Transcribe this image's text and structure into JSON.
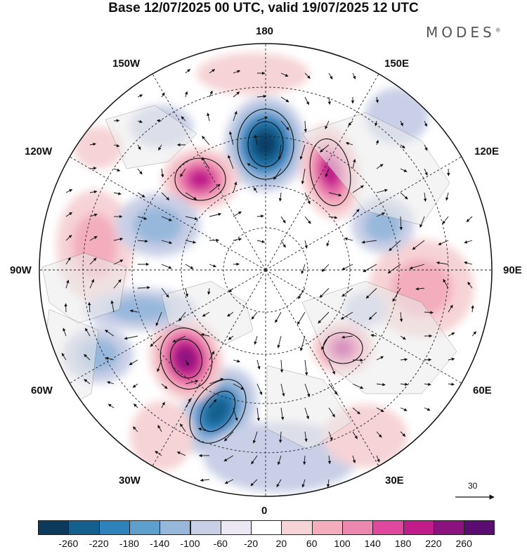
{
  "header": {
    "title": "Base 12/07/2025 00 UTC, valid 19/07/2025 12 UTC",
    "brand": "MODES",
    "brand_mark": "®"
  },
  "map": {
    "projection": "north-polar-stereographic",
    "longitude_labels": {
      "lon_180": "180",
      "lon_150w": "150W",
      "lon_150e": "150E",
      "lon_120w": "120W",
      "lon_120e": "120E",
      "lon_90w": "90W",
      "lon_90e": "90E",
      "lon_60w": "60W",
      "lon_60e": "60E",
      "lon_30w": "30W",
      "lon_30e": "30E",
      "lon_0": "0"
    },
    "vector_reference": {
      "value": "30"
    },
    "colors": {
      "strong_negative": "#0c3d66",
      "negative": "#2e83bd",
      "weak_negative": "#c9cfe6",
      "neutral": "#ffffff",
      "weak_positive": "#f6d3d6",
      "positive": "#e767a6",
      "strong_positive": "#8c1280",
      "land_shade": "#ebebeb"
    }
  },
  "colorbar": {
    "colors": [
      "#0d3a5b",
      "#13608f",
      "#2e83bd",
      "#5d9fcd",
      "#97b8db",
      "#c9cfe6",
      "#ebe8f3",
      "#ffffff",
      "#f6d3d6",
      "#f3adbd",
      "#ec87b0",
      "#e0479e",
      "#c01d8b",
      "#8c1280",
      "#5b0c70"
    ],
    "labels": [
      "-260",
      "-220",
      "-180",
      "-140",
      "-100",
      "-60",
      "-20",
      "20",
      "60",
      "100",
      "140",
      "180",
      "220",
      "260"
    ]
  }
}
